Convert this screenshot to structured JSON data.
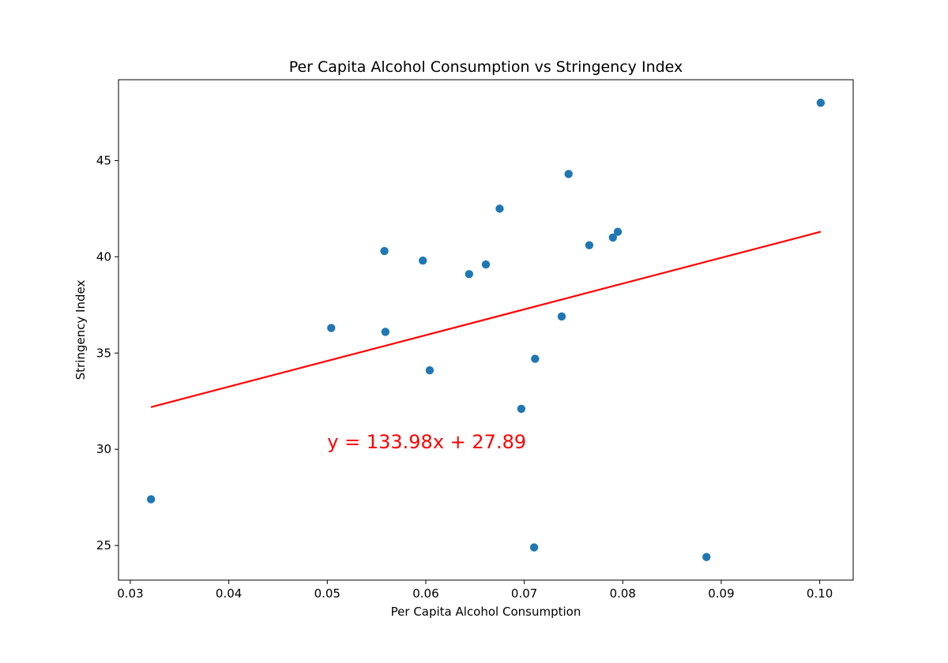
{
  "chart_data": {
    "type": "scatter",
    "title": "Per Capita Alcohol Consumption vs Stringency Index",
    "xlabel": "Per Capita Alcohol Consumption",
    "ylabel": "Stringency Index",
    "xlim": [
      0.0288,
      0.1034
    ],
    "ylim": [
      23.2,
      49.2
    ],
    "xticks": [
      0.03,
      0.04,
      0.05,
      0.06,
      0.07,
      0.08,
      0.09,
      0.1
    ],
    "xtick_labels": [
      "0.03",
      "0.04",
      "0.05",
      "0.06",
      "0.07",
      "0.08",
      "0.09",
      "0.10"
    ],
    "yticks": [
      25,
      30,
      35,
      40,
      45
    ],
    "ytick_labels": [
      "25",
      "30",
      "35",
      "40",
      "45"
    ],
    "grid": false,
    "points": [
      {
        "x": 0.0321,
        "y": 27.4
      },
      {
        "x": 0.0504,
        "y": 36.3
      },
      {
        "x": 0.0558,
        "y": 40.3
      },
      {
        "x": 0.0559,
        "y": 36.1
      },
      {
        "x": 0.0597,
        "y": 39.8
      },
      {
        "x": 0.0604,
        "y": 34.1
      },
      {
        "x": 0.0644,
        "y": 39.1
      },
      {
        "x": 0.0661,
        "y": 39.6
      },
      {
        "x": 0.0675,
        "y": 42.5
      },
      {
        "x": 0.0697,
        "y": 32.1
      },
      {
        "x": 0.071,
        "y": 24.9
      },
      {
        "x": 0.0711,
        "y": 34.7
      },
      {
        "x": 0.0738,
        "y": 36.9
      },
      {
        "x": 0.0745,
        "y": 44.3
      },
      {
        "x": 0.0766,
        "y": 40.6
      },
      {
        "x": 0.079,
        "y": 41.0
      },
      {
        "x": 0.0795,
        "y": 41.3
      },
      {
        "x": 0.0885,
        "y": 24.4
      },
      {
        "x": 0.1001,
        "y": 48.0
      }
    ],
    "regression": {
      "slope": 133.98,
      "intercept": 27.89,
      "x_range": [
        0.0321,
        0.1001
      ],
      "equation": "y = 133.98x + 27.89",
      "equation_position": {
        "x": 0.05,
        "y": 30.0
      }
    },
    "colors": {
      "points": "#1f77b4",
      "line": "#ff0000",
      "equation": "#ff0000"
    }
  }
}
